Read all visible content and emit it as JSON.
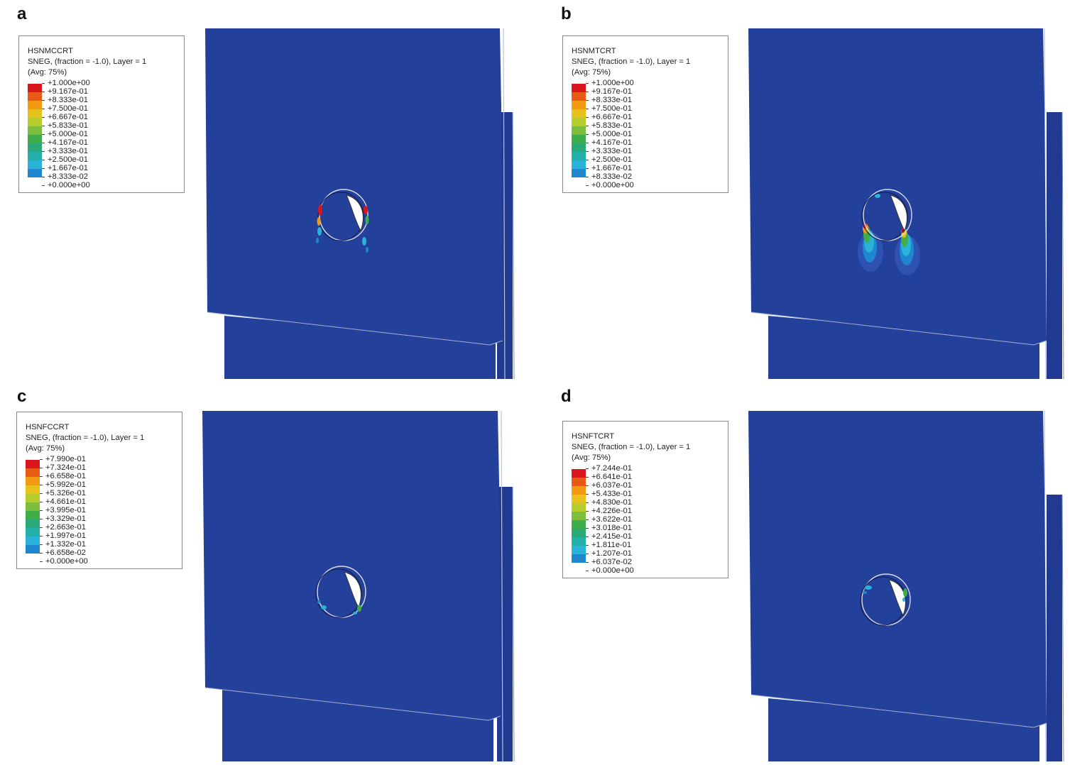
{
  "panels": [
    {
      "letter": "a",
      "legend_title": "HSNMCCRT",
      "legend_line2": "SNEG, (fraction = -1.0), Layer = 1",
      "legend_line3": "(Avg: 75%)",
      "scale": [
        "+1.000e+00",
        "+9.167e-01",
        "+8.333e-01",
        "+7.500e-01",
        "+6.667e-01",
        "+5.833e-01",
        "+5.000e-01",
        "+4.167e-01",
        "+3.333e-01",
        "+2.500e-01",
        "+1.667e-01",
        "+8.333e-02",
        "+0.000e+00"
      ]
    },
    {
      "letter": "b",
      "legend_title": "HSNMTCRT",
      "legend_line2": "SNEG, (fraction = -1.0), Layer = 1",
      "legend_line3": "(Avg: 75%)",
      "scale": [
        "+1.000e+00",
        "+9.167e-01",
        "+8.333e-01",
        "+7.500e-01",
        "+6.667e-01",
        "+5.833e-01",
        "+5.000e-01",
        "+4.167e-01",
        "+3.333e-01",
        "+2.500e-01",
        "+1.667e-01",
        "+8.333e-02",
        "+0.000e+00"
      ]
    },
    {
      "letter": "c",
      "legend_title": "HSNFCCRT",
      "legend_line2": "SNEG, (fraction = -1.0), Layer = 1",
      "legend_line3": "(Avg: 75%)",
      "scale": [
        "+7.990e-01",
        "+7.324e-01",
        "+6.658e-01",
        "+5.992e-01",
        "+5.326e-01",
        "+4.661e-01",
        "+3.995e-01",
        "+3.329e-01",
        "+2.663e-01",
        "+1.997e-01",
        "+1.332e-01",
        "+6.658e-02",
        "+0.000e+00"
      ]
    },
    {
      "letter": "d",
      "legend_title": "HSNFTCRT",
      "legend_line2": "SNEG, (fraction = -1.0), Layer = 1",
      "legend_line3": "(Avg: 75%)",
      "scale": [
        "+7.244e-01",
        "+6.641e-01",
        "+6.037e-01",
        "+5.433e-01",
        "+4.830e-01",
        "+4.226e-01",
        "+3.622e-01",
        "+3.018e-01",
        "+2.415e-01",
        "+1.811e-01",
        "+1.207e-01",
        "+6.037e-02",
        "+0.000e+00"
      ]
    }
  ],
  "colors": {
    "plate": "#23409a",
    "plate_dark": "#1a2f7c",
    "contour": [
      "#d9161c",
      "#ea5a17",
      "#f39a12",
      "#e7c21d",
      "#b7cd2c",
      "#7dbf3c",
      "#3fae4a",
      "#2aa877",
      "#23b0a8",
      "#2ab3d9",
      "#1f87d0",
      "#1f4fb0",
      "#23409a"
    ]
  }
}
